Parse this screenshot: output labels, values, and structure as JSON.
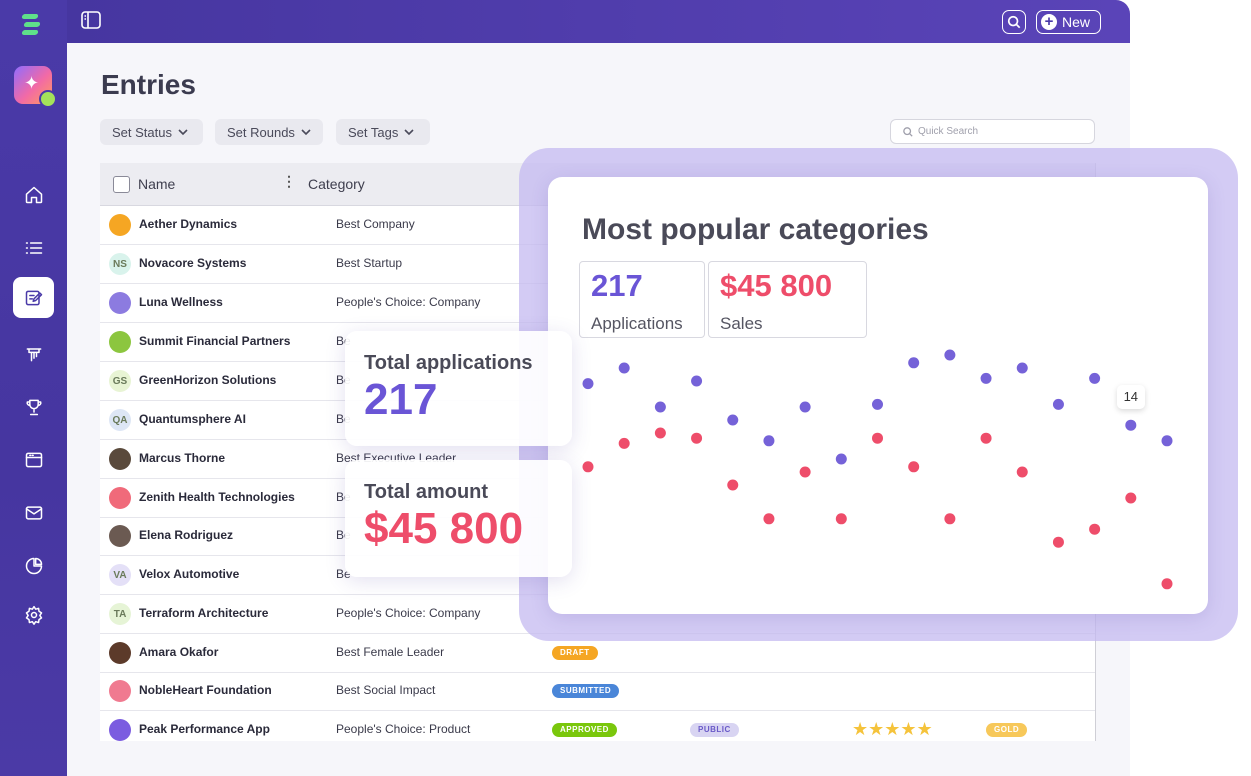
{
  "topbar": {
    "new_label": "New"
  },
  "page": {
    "title": "Entries"
  },
  "filters": [
    {
      "label": "Set Status"
    },
    {
      "label": "Set Rounds"
    },
    {
      "label": "Set Tags"
    }
  ],
  "search": {
    "placeholder": "Quick Search"
  },
  "table": {
    "columns": {
      "name": "Name",
      "category": "Category"
    },
    "rows": [
      {
        "name": "Aether Dynamics",
        "category": "Best Company",
        "initials": "",
        "color": "#f5a623"
      },
      {
        "name": "Novacore Systems",
        "category": "Best Startup",
        "initials": "NS",
        "color": "#d9f3ec"
      },
      {
        "name": "Luna Wellness",
        "category": "People's Choice: Company",
        "initials": "",
        "color": "#8c7be0"
      },
      {
        "name": "Summit Financial Partners",
        "category": "Be",
        "initials": "",
        "color": "#8cc63f"
      },
      {
        "name": "GreenHorizon Solutions",
        "category": "Be",
        "initials": "GS",
        "color": "#e8f4d4"
      },
      {
        "name": "Quantumsphere AI",
        "category": "Be",
        "initials": "QA",
        "color": "#dde6f5"
      },
      {
        "name": "Marcus Thorne",
        "category": "Best Executive Leader",
        "initials": "",
        "color": "#5a4a3c"
      },
      {
        "name": "Zenith Health Technologies",
        "category": "Be",
        "initials": "",
        "color": "#f06a7a"
      },
      {
        "name": "Elena Rodriguez",
        "category": "Be",
        "initials": "",
        "color": "#6b5a52"
      },
      {
        "name": "Velox Automotive",
        "category": "Be",
        "initials": "VA",
        "color": "#e4e0f7"
      },
      {
        "name": "Terraform Architecture",
        "category": "People's Choice: Company",
        "initials": "TA",
        "color": "#e6f4d6"
      },
      {
        "name": "Amara Okafor",
        "category": "Best Female Leader",
        "initials": "",
        "color": "#5c3a2a",
        "status": "DRAFT",
        "status_color": "#f5a623"
      },
      {
        "name": "NobleHeart Foundation",
        "category": "Best Social Impact",
        "initials": "",
        "color": "#f07a90",
        "status": "SUBMITTED",
        "status_color": "#4a86d8"
      },
      {
        "name": "Peak Performance App",
        "category": "People's Choice: Product",
        "initials": "",
        "color": "#7b5ce0",
        "status": "APPROVED",
        "status_color": "#7ac70c",
        "tag": "PUBLIC",
        "tag_color": "#d8d4f2",
        "stars": "★★★★★",
        "award": "GOLD",
        "award_color": "#f7c85a"
      }
    ]
  },
  "chart_card": {
    "title": "Most popular categories",
    "kpis": [
      {
        "value": "217",
        "label": "Applications",
        "color": "#6a55d6"
      },
      {
        "value": "$45 800",
        "label": "Sales",
        "color": "#ee4d6a"
      }
    ],
    "tooltip": "14"
  },
  "overlays": {
    "applications": {
      "title": "Total applications",
      "value": "217",
      "color": "#6a55d6"
    },
    "amount": {
      "title": "Total amount",
      "value": "$45 800",
      "color": "#ee4d6a"
    }
  },
  "chart_data": {
    "type": "scatter",
    "title": "Most popular categories",
    "series": [
      {
        "name": "Applications",
        "color": "#7562d8",
        "values": [
          84,
          90,
          75,
          85,
          70,
          62,
          75,
          55,
          76,
          92,
          95,
          86,
          90,
          76,
          86,
          68,
          62
        ]
      },
      {
        "name": "Sales",
        "color": "#ee4d6a",
        "values": [
          52,
          61,
          65,
          63,
          45,
          32,
          50,
          32,
          63,
          52,
          32,
          63,
          50,
          23,
          28,
          40,
          7
        ]
      }
    ],
    "ylim": [
      0,
      100
    ],
    "annotation": {
      "index": 15,
      "text": "14"
    }
  }
}
